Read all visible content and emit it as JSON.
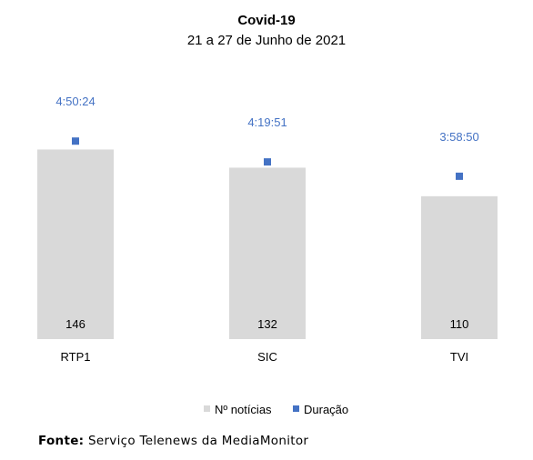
{
  "chart_data": {
    "type": "bar",
    "title": "Covid-19",
    "subtitle": "21 a 27 de Junho de 2021",
    "categories": [
      "RTP1",
      "SIC",
      "TVI"
    ],
    "series": [
      {
        "name": "Nº notícias",
        "type": "bar",
        "values": [
          146,
          132,
          110
        ],
        "color": "#d9d9d9"
      },
      {
        "name": "Duração",
        "type": "marker",
        "values": [
          "4:50:24",
          "4:19:51",
          "3:58:50"
        ],
        "color": "#4472c4"
      }
    ],
    "bar_value_labels": [
      "146",
      "132",
      "110"
    ],
    "duration_labels": [
      "4:50:24",
      "4:19:51",
      "3:58:50"
    ],
    "legend_position": "bottom",
    "grid": false
  },
  "source": {
    "label": "Fonte:",
    "text": "Serviço Telenews da MediaMonitor"
  }
}
